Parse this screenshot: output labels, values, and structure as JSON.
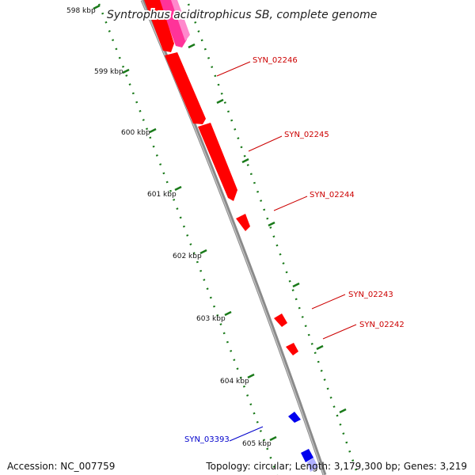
{
  "title": "Syntrophus aciditrophicus SB, complete genome",
  "ticks": [
    "598 kbp",
    "599 kbp",
    "600 kbp",
    "601 kbp",
    "602 kbp",
    "603 kbp",
    "604 kbp",
    "605 kbp"
  ],
  "genes": [
    {
      "name": "SYN_02246",
      "strand": "forward",
      "color": "#cc0000"
    },
    {
      "name": "SYN_02245",
      "strand": "forward",
      "color": "#cc0000"
    },
    {
      "name": "SYN_02244",
      "strand": "forward",
      "color": "#cc0000"
    },
    {
      "name": "SYN_02243",
      "strand": "forward",
      "color": "#cc0000"
    },
    {
      "name": "SYN_02242",
      "strand": "forward",
      "color": "#cc0000"
    },
    {
      "name": "SYN_03393",
      "strand": "reverse",
      "color": "#0000cc"
    }
  ],
  "colors": {
    "forward_feature": "#ff0000",
    "forward_highlight": "#ff3399",
    "reverse_feature": "#0000ee",
    "backbone": "#8a8a8a",
    "tick_marks": "#1a7a1a"
  },
  "footer": {
    "accession": "Accession: NC_007759",
    "summary": "Topology: circular; Length: 3,179,300 bp; Genes: 3,219"
  }
}
